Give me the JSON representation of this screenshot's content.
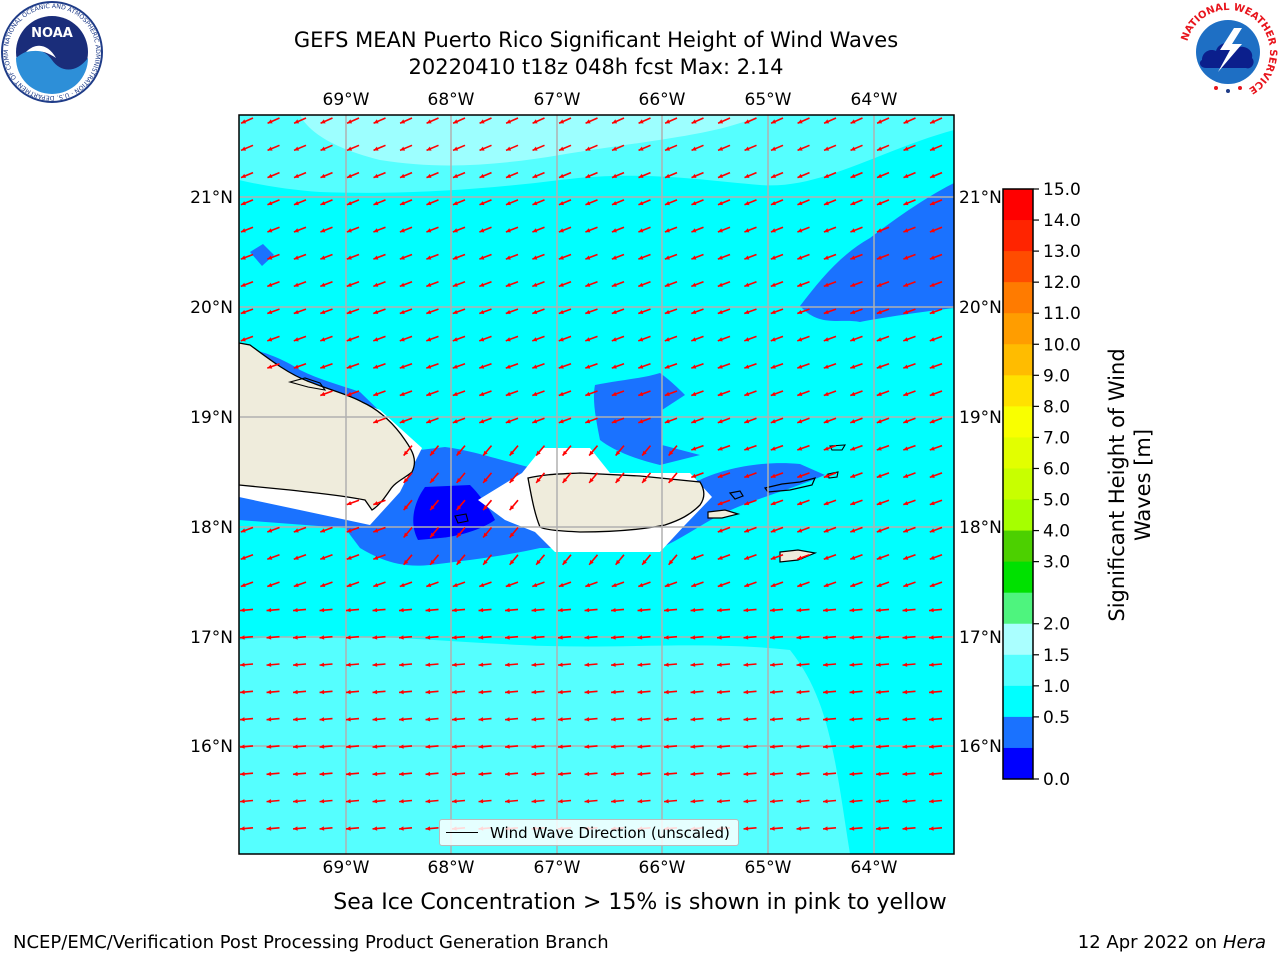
{
  "title_line1": "GEFS MEAN Puerto Rico Significant Height of Wind Waves",
  "title_line2": "20220410 t18z 048h fcst   Max: 2.14",
  "subtitle": "Sea Ice Concentration > 15% is shown in pink to yellow",
  "footer_left": "NCEP/EMC/Verification Post Processing Product Generation Branch",
  "footer_right_date": "12 Apr 2022 on ",
  "footer_right_host": "Hera",
  "legend_label": "Wind Wave Direction (unscaled)",
  "colorbar_title_line1": "Significant Height of Wind",
  "colorbar_title_line2": "Waves [m]",
  "logo_left_text": "NOAA",
  "logo_left_ring_text": "NATIONAL OCEANIC AND ATMOSPHERIC ADMINISTRATION · U.S. DEPARTMENT OF COMMERCE",
  "logo_right_ring_text": "NATIONAL WEATHER SERVICE",
  "map": {
    "lon_labels": [
      "69°W",
      "68°W",
      "67°W",
      "66°W",
      "65°W",
      "64°W"
    ],
    "lat_labels": [
      "21°N",
      "20°N",
      "19°N",
      "18°N",
      "17°N",
      "16°N"
    ],
    "colors": {
      "land": "#efecdc",
      "arrow": "#ff0000",
      "grid": "#b0b0b0"
    }
  },
  "colorbar": {
    "ticks": [
      "15.0",
      "14.0",
      "13.0",
      "12.0",
      "11.0",
      "10.0",
      "9.0",
      "8.0",
      "7.0",
      "6.0",
      "5.0",
      "4.0",
      "3.0",
      "2.0",
      "1.5",
      "1.0",
      "0.5",
      "0.0"
    ],
    "colors": [
      "#ff0000",
      "#ff2400",
      "#ff4c00",
      "#ff7b00",
      "#ff9d00",
      "#ffbc00",
      "#ffe100",
      "#f9ff00",
      "#e2ff00",
      "#c8ff00",
      "#a6ff00",
      "#4cd000",
      "#00e100",
      "#4ef47e",
      "#aaffff",
      "#55ffff",
      "#00ffff",
      "#1a72ff",
      "#0000ff"
    ]
  }
}
